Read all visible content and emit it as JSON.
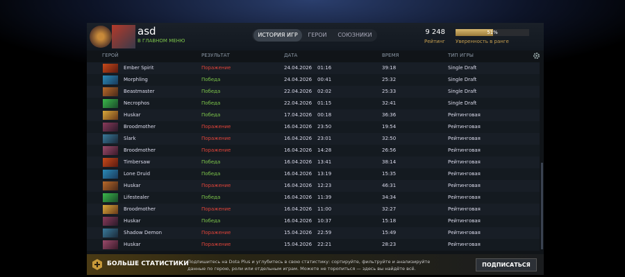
{
  "header": {
    "player_name": "asd",
    "status": "В ГЛАВНОМ МЕНЮ",
    "tabs": [
      "ИСТОРИЯ ИГР",
      "ГЕРОИ",
      "СОЮЗНИКИ"
    ],
    "rating": "9 248",
    "rating_label": "Рейтинг",
    "confidence": {
      "value": 51,
      "label": "51%"
    },
    "confidence_label": "Уверенность в ранге"
  },
  "table": {
    "columns": [
      "ГЕРОЙ",
      "РЕЗУЛЬТАТ",
      "ДАТА",
      "ВРЕМЯ",
      "ТИП ИГРЫ"
    ],
    "rows": [
      {
        "hero": "Ember Spirit",
        "result": "Поражение",
        "result_color": "#e2443a",
        "date": "24.04.2026",
        "time": "01:16",
        "duration": "39:18",
        "mode": "Single Draft"
      },
      {
        "hero": "Morphling",
        "result": "Победа",
        "result_color": "#7cc44a",
        "date": "24.04.2026",
        "time": "00:41",
        "duration": "25:32",
        "mode": "Single Draft"
      },
      {
        "hero": "Beastmaster",
        "result": "Победа",
        "result_color": "#7cc44a",
        "date": "22.04.2026",
        "time": "02:02",
        "duration": "25:33",
        "mode": "Single Draft"
      },
      {
        "hero": "Necrophos",
        "result": "Победа",
        "result_color": "#7cc44a",
        "date": "22.04.2026",
        "time": "01:15",
        "duration": "32:41",
        "mode": "Single Draft"
      },
      {
        "hero": "Huskar",
        "result": "Победа",
        "result_color": "#7cc44a",
        "date": "17.04.2026",
        "time": "00:18",
        "duration": "36:36",
        "mode": "Рейтинговая"
      },
      {
        "hero": "Broodmother",
        "result": "Поражение",
        "result_color": "#e2443a",
        "date": "16.04.2026",
        "time": "23:50",
        "duration": "19:54",
        "mode": "Рейтинговая"
      },
      {
        "hero": "Slark",
        "result": "Поражение",
        "result_color": "#e2443a",
        "date": "16.04.2026",
        "time": "23:01",
        "duration": "32:50",
        "mode": "Рейтинговая"
      },
      {
        "hero": "Broodmother",
        "result": "Поражение",
        "result_color": "#e2443a",
        "date": "16.04.2026",
        "time": "14:28",
        "duration": "26:56",
        "mode": "Рейтинговая"
      },
      {
        "hero": "Timbersaw",
        "result": "Победа",
        "result_color": "#7cc44a",
        "date": "16.04.2026",
        "time": "13:41",
        "duration": "38:14",
        "mode": "Рейтинговая"
      },
      {
        "hero": "Lone Druid",
        "result": "Победа",
        "result_color": "#7cc44a",
        "date": "16.04.2026",
        "time": "13:19",
        "duration": "15:35",
        "mode": "Рейтинговая"
      },
      {
        "hero": "Huskar",
        "result": "Поражение",
        "result_color": "#e2443a",
        "date": "16.04.2026",
        "time": "12:23",
        "duration": "46:31",
        "mode": "Рейтинговая"
      },
      {
        "hero": "Lifestealer",
        "result": "Победа",
        "result_color": "#7cc44a",
        "date": "16.04.2026",
        "time": "11:39",
        "duration": "34:34",
        "mode": "Рейтинговая"
      },
      {
        "hero": "Broodmother",
        "result": "Поражение",
        "result_color": "#e2443a",
        "date": "16.04.2026",
        "time": "11:00",
        "duration": "32:27",
        "mode": "Рейтинговая"
      },
      {
        "hero": "Huskar",
        "result": "Победа",
        "result_color": "#7cc44a",
        "date": "16.04.2026",
        "time": "10:37",
        "duration": "15:18",
        "mode": "Рейтинговая"
      },
      {
        "hero": "Shadow Demon",
        "result": "Поражение",
        "result_color": "#e2443a",
        "date": "15.04.2026",
        "time": "22:59",
        "duration": "15:49",
        "mode": "Рейтинговая"
      },
      {
        "hero": "Huskar",
        "result": "Поражение",
        "result_color": "#e2443a",
        "date": "15.04.2026",
        "time": "22:21",
        "duration": "28:23",
        "mode": "Рейтинговая"
      }
    ]
  },
  "footer": {
    "title": "БОЛЬШЕ СТАТИСТИКИ",
    "text": "Подпишитесь на Dota Plus и углубитесь в свою статистику: сортируйте, фильтруйте и анализируйте данные по герою, роли или отдельным играм. Можете не торопиться — здесь вы найдёте всё.",
    "button": "ПОДПИСАТЬСЯ"
  }
}
